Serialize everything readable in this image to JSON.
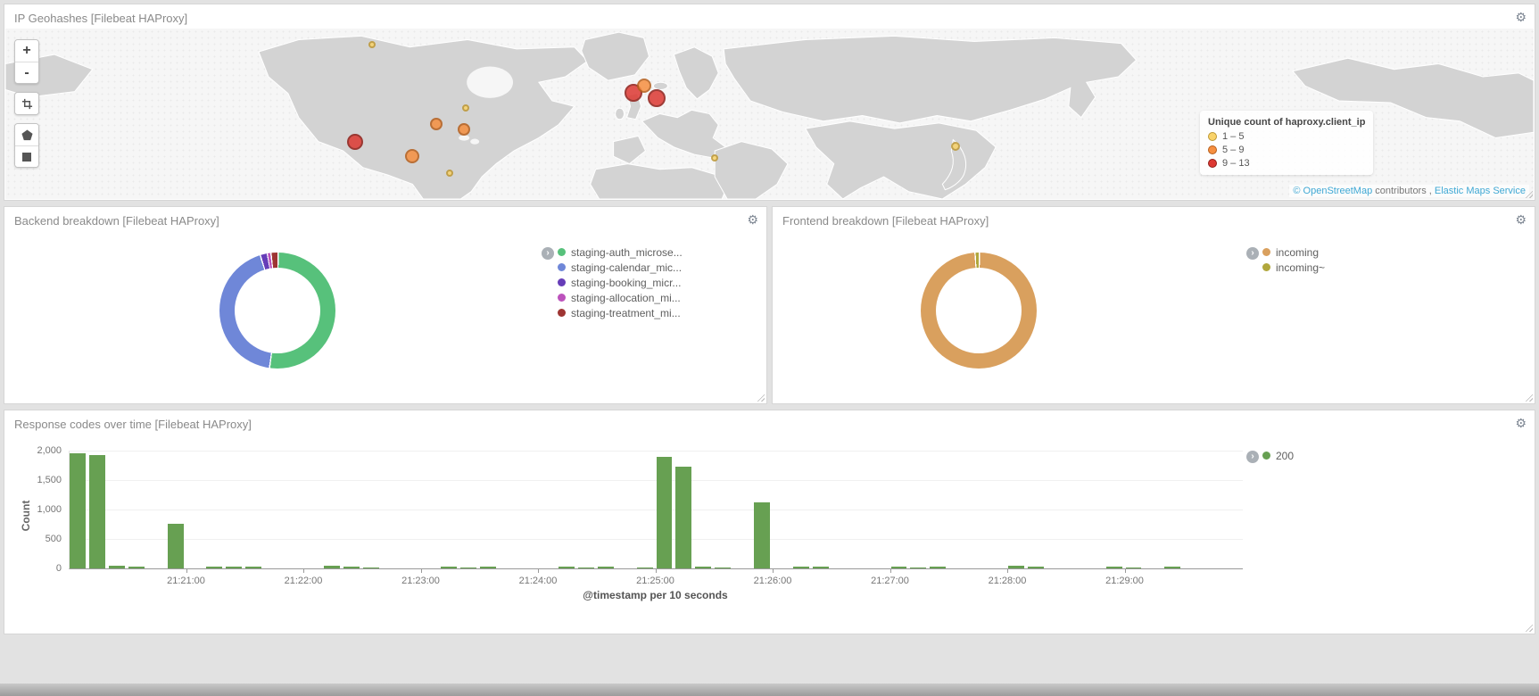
{
  "icons": {
    "gear": "⚙",
    "legend_toggle": "›",
    "zoom_in": "+",
    "zoom_out": "-"
  },
  "map_panel": {
    "title": "IP Geohashes [Filebeat HAProxy]",
    "legend": {
      "title": "Unique count of haproxy.client_ip",
      "items": [
        {
          "label": "1 – 5",
          "fill": "#f9d36a",
          "stroke": "#bd9733"
        },
        {
          "label": "5 – 9",
          "fill": "#f68f40",
          "stroke": "#b55e1b"
        },
        {
          "label": "9 – 13",
          "fill": "#dd3832",
          "stroke": "#8f1d17"
        }
      ]
    },
    "attribution": {
      "copy": "©",
      "osm_link": "OpenStreetMap",
      "middle": "contributors ,",
      "elastic_link": "Elastic Maps Service"
    },
    "points": [
      {
        "x": 24.0,
        "y": 9.2,
        "r": 4,
        "tier": 0
      },
      {
        "x": 22.9,
        "y": 66.3,
        "r": 9,
        "tier": 2
      },
      {
        "x": 26.6,
        "y": 75.0,
        "r": 8,
        "tier": 1
      },
      {
        "x": 28.2,
        "y": 56.0,
        "r": 7,
        "tier": 1
      },
      {
        "x": 30.0,
        "y": 59.2,
        "r": 7,
        "tier": 1
      },
      {
        "x": 29.1,
        "y": 84.8,
        "r": 4,
        "tier": 0
      },
      {
        "x": 30.1,
        "y": 46.7,
        "r": 4,
        "tier": 0
      },
      {
        "x": 41.1,
        "y": 37.5,
        "r": 10,
        "tier": 2
      },
      {
        "x": 41.8,
        "y": 33.7,
        "r": 8,
        "tier": 1
      },
      {
        "x": 42.6,
        "y": 40.8,
        "r": 10,
        "tier": 2
      },
      {
        "x": 46.4,
        "y": 76.1,
        "r": 4,
        "tier": 0
      },
      {
        "x": 62.2,
        "y": 69.0,
        "r": 5,
        "tier": 0
      }
    ]
  },
  "backend_panel": {
    "title": "Backend breakdown [Filebeat HAProxy]",
    "chart_data": {
      "type": "pie",
      "donut": true,
      "legend_position": "right",
      "slices": [
        {
          "label": "staging-auth_microse...",
          "value": 52,
          "color": "#57c17b"
        },
        {
          "label": "staging-calendar_mic...",
          "value": 43,
          "color": "#6f87d8"
        },
        {
          "label": "staging-booking_micr...",
          "value": 2,
          "color": "#663db8"
        },
        {
          "label": "staging-allocation_mi...",
          "value": 1,
          "color": "#bc52bc"
        },
        {
          "label": "staging-treatment_mi...",
          "value": 2,
          "color": "#9e3533"
        }
      ]
    }
  },
  "frontend_panel": {
    "title": "Frontend breakdown [Filebeat HAProxy]",
    "chart_data": {
      "type": "pie",
      "donut": true,
      "legend_position": "right",
      "slices": [
        {
          "label": "incoming",
          "value": 98.8,
          "color": "#d9a05e"
        },
        {
          "label": "incoming~",
          "value": 1.2,
          "color": "#b1a73c"
        }
      ]
    }
  },
  "response_panel": {
    "title": "Response codes over time [Filebeat HAProxy]",
    "chart_data": {
      "type": "bar",
      "ylabel": "Count",
      "xlabel": "@timestamp per 10 seconds",
      "ylim": [
        0,
        2000
      ],
      "grid": true,
      "legend_position": "right",
      "yticks": [
        {
          "label": "2,000",
          "v": 2000
        },
        {
          "label": "1,500",
          "v": 1500
        },
        {
          "label": "1,000",
          "v": 1000
        },
        {
          "label": "500",
          "v": 500
        },
        {
          "label": "0",
          "v": 0
        }
      ],
      "x_domain_seconds": 600,
      "x_start": "21:20:00",
      "bar_interval_seconds": 10,
      "xticks": [
        {
          "label": "21:21:00",
          "t": 60
        },
        {
          "label": "21:22:00",
          "t": 120
        },
        {
          "label": "21:23:00",
          "t": 180
        },
        {
          "label": "21:24:00",
          "t": 240
        },
        {
          "label": "21:25:00",
          "t": 300
        },
        {
          "label": "21:26:00",
          "t": 360
        },
        {
          "label": "21:27:00",
          "t": 420
        },
        {
          "label": "21:28:00",
          "t": 480
        },
        {
          "label": "21:29:00",
          "t": 540
        }
      ],
      "series": [
        {
          "name": "200",
          "color": "#67a052",
          "bars": [
            {
              "t": 0,
              "v": 1950
            },
            {
              "t": 10,
              "v": 1930
            },
            {
              "t": 20,
              "v": 40
            },
            {
              "t": 30,
              "v": 25
            },
            {
              "t": 50,
              "v": 760
            },
            {
              "t": 70,
              "v": 30
            },
            {
              "t": 80,
              "v": 25
            },
            {
              "t": 90,
              "v": 30
            },
            {
              "t": 130,
              "v": 40
            },
            {
              "t": 140,
              "v": 25
            },
            {
              "t": 150,
              "v": 20
            },
            {
              "t": 190,
              "v": 25
            },
            {
              "t": 200,
              "v": 20
            },
            {
              "t": 210,
              "v": 25
            },
            {
              "t": 250,
              "v": 30
            },
            {
              "t": 260,
              "v": 20
            },
            {
              "t": 270,
              "v": 25
            },
            {
              "t": 290,
              "v": 20
            },
            {
              "t": 300,
              "v": 1900
            },
            {
              "t": 310,
              "v": 1730
            },
            {
              "t": 320,
              "v": 30
            },
            {
              "t": 330,
              "v": 20
            },
            {
              "t": 350,
              "v": 1120
            },
            {
              "t": 370,
              "v": 35
            },
            {
              "t": 380,
              "v": 25
            },
            {
              "t": 420,
              "v": 30
            },
            {
              "t": 430,
              "v": 20
            },
            {
              "t": 440,
              "v": 25
            },
            {
              "t": 480,
              "v": 45
            },
            {
              "t": 490,
              "v": 25
            },
            {
              "t": 530,
              "v": 25
            },
            {
              "t": 540,
              "v": 20
            },
            {
              "t": 560,
              "v": 25
            }
          ]
        }
      ]
    }
  }
}
